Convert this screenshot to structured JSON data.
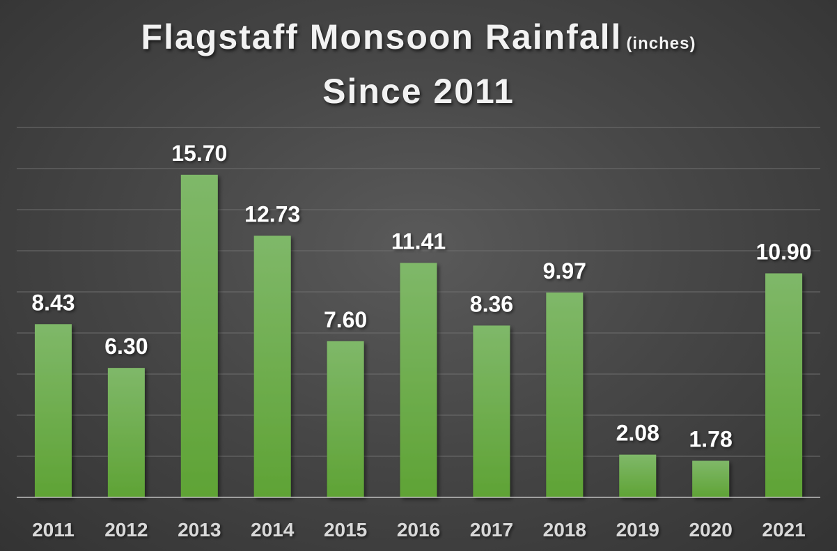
{
  "title": {
    "line1": "Flagstaff Monsoon Rainfall",
    "unit": "(inches)",
    "line2": "Since 2011"
  },
  "colors": {
    "bar_top": "#7fb869",
    "bar_bottom": "#5fa335",
    "gridline": "#6e6e6e",
    "axis": "#bfbfbf",
    "label": "#ffffff",
    "tick": "#d9d9d9"
  },
  "chart_data": {
    "type": "bar",
    "title": "Flagstaff Monsoon Rainfall (inches) Since 2011",
    "xlabel": "",
    "ylabel": "",
    "categories": [
      "2011",
      "2012",
      "2013",
      "2014",
      "2015",
      "2016",
      "2017",
      "2018",
      "2019",
      "2020",
      "2021"
    ],
    "values": [
      8.43,
      6.3,
      15.7,
      12.73,
      7.6,
      11.41,
      8.36,
      9.97,
      2.08,
      1.78,
      10.9
    ],
    "value_labels": [
      "8.43",
      "6.30",
      "15.70",
      "12.73",
      "7.60",
      "11.41",
      "8.36",
      "9.97",
      "2.08",
      "1.78",
      "10.90"
    ],
    "ylim": [
      0,
      18
    ],
    "grid": true,
    "gridline_step": 2,
    "legend": "none"
  }
}
